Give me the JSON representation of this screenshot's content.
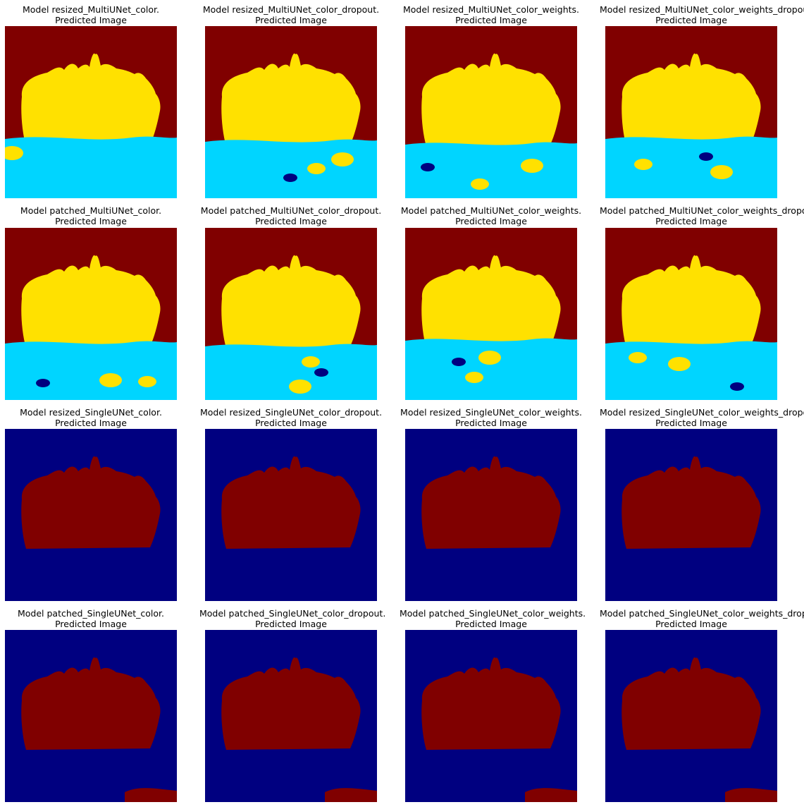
{
  "subtitle": "Predicted Image",
  "colors": {
    "background": "#800000",
    "foreground": "#FFE100",
    "water": "#00D5FF",
    "other": "#000080"
  },
  "panels": [
    {
      "title": "Model resized_MultiUNet_color.",
      "variant": "multi"
    },
    {
      "title": "Model resized_MultiUNet_color_dropout.",
      "variant": "multi"
    },
    {
      "title": "Model resized_MultiUNet_color_weights.",
      "variant": "multi"
    },
    {
      "title": "Model resized_MultiUNet_color_weights_dropout.",
      "variant": "multi"
    },
    {
      "title": "Model patched_MultiUNet_color.",
      "variant": "multi"
    },
    {
      "title": "Model patched_MultiUNet_color_dropout.",
      "variant": "multi"
    },
    {
      "title": "Model patched_MultiUNet_color_weights.",
      "variant": "multi"
    },
    {
      "title": "Model patched_MultiUNet_color_weights_dropout.",
      "variant": "multi"
    },
    {
      "title": "Model resized_SingleUNet_color.",
      "variant": "single"
    },
    {
      "title": "Model resized_SingleUNet_color_dropout.",
      "variant": "single"
    },
    {
      "title": "Model resized_SingleUNet_color_weights.",
      "variant": "single"
    },
    {
      "title": "Model resized_SingleUNet_color_weights_dropout.",
      "variant": "single"
    },
    {
      "title": "Model patched_SingleUNet_color.",
      "variant": "single"
    },
    {
      "title": "Model patched_SingleUNet_color_dropout.",
      "variant": "single"
    },
    {
      "title": "Model patched_SingleUNet_color_weights.",
      "variant": "single"
    },
    {
      "title": "Model patched_SingleUNet_color_weights_dropout.",
      "variant": "single"
    }
  ]
}
